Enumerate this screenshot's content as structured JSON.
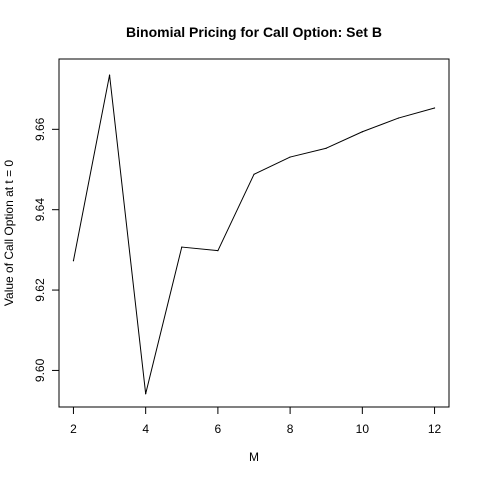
{
  "chart_data": {
    "type": "line",
    "title": "Binomial Pricing for Call Option: Set B",
    "xlabel": "M",
    "ylabel": "Value of Call Option at t = 0",
    "x": [
      2,
      3,
      4,
      5,
      6,
      7,
      8,
      9,
      10,
      11,
      12
    ],
    "series": [
      {
        "values": [
          9.6273,
          9.6735,
          9.5942,
          9.6307,
          9.6298,
          9.6488,
          9.6531,
          9.6553,
          9.6594,
          9.6628,
          9.6653
        ]
      }
    ],
    "xlim": [
      1.6,
      12.4
    ],
    "ylim": [
      9.5909,
      9.6775
    ],
    "x_ticks": [
      "2",
      "4",
      "6",
      "8",
      "10",
      "12"
    ],
    "y_ticks": [
      "9.60",
      "9.62",
      "9.64",
      "9.66"
    ],
    "grid": false,
    "legend": "none",
    "line_color": "#000000"
  }
}
